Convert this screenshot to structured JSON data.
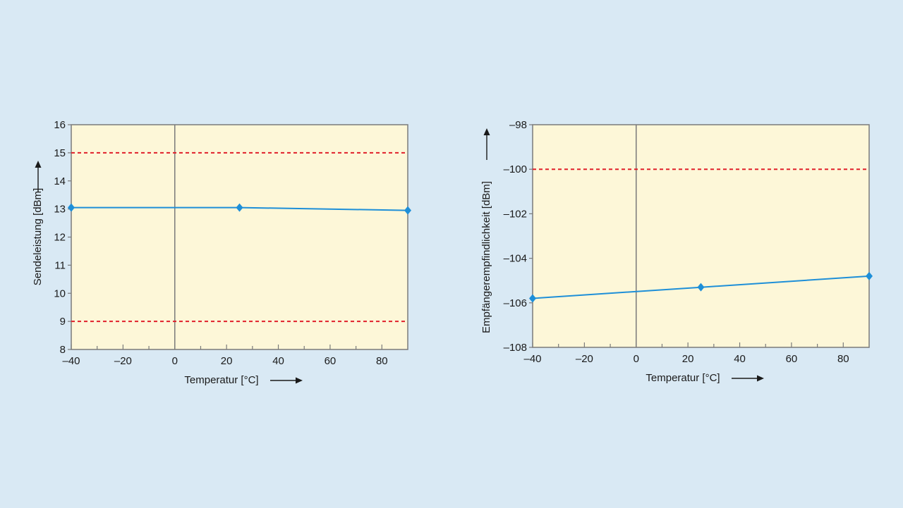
{
  "colors": {
    "background": "#d9e9f4",
    "plot_fill": "#fdf7d8",
    "series": "#1e8fd8",
    "limit": "#e0202a",
    "frame": "#7a7a7a",
    "arrow": "#1a1a1a"
  },
  "chart_data": [
    {
      "type": "line",
      "xlabel": "Temperatur [°C]",
      "ylabel": "Sendeleistung [dBm]",
      "xlim": [
        -40,
        90
      ],
      "ylim": [
        8,
        16
      ],
      "x_ticks": [
        -40,
        -20,
        0,
        20,
        40,
        60,
        80
      ],
      "x_tick_labels": [
        "–40",
        "–20",
        "0",
        "20",
        "40",
        "60",
        "80"
      ],
      "y_ticks": [
        8,
        9,
        10,
        11,
        12,
        13,
        14,
        15,
        16
      ],
      "y_tick_labels": [
        "8",
        "9",
        "10",
        "11",
        "12",
        "13",
        "14",
        "15",
        "16"
      ],
      "reference_lines": {
        "vertical_x": 0,
        "dashed_y": [
          15,
          9
        ]
      },
      "grid": false,
      "series": [
        {
          "x": [
            -40,
            25,
            90
          ],
          "y": [
            13.05,
            13.05,
            12.95
          ],
          "marker": "diamond"
        }
      ]
    },
    {
      "type": "line",
      "xlabel": "Temperatur [°C]",
      "ylabel": "Empfängerempfindlichkeit [dBm]",
      "xlim": [
        -40,
        90
      ],
      "ylim": [
        -108,
        -98
      ],
      "x_ticks": [
        -40,
        -20,
        0,
        20,
        40,
        60,
        80
      ],
      "x_tick_labels": [
        "–40",
        "–20",
        "0",
        "20",
        "40",
        "60",
        "80"
      ],
      "y_ticks": [
        -108,
        -106,
        -104,
        -102,
        -100,
        -98
      ],
      "y_tick_labels": [
        "–108",
        "–106",
        "–104",
        "–102",
        "–100",
        "–98"
      ],
      "reference_lines": {
        "vertical_x": 0,
        "dashed_y": [
          -100
        ]
      },
      "grid": false,
      "series": [
        {
          "x": [
            -40,
            25,
            90
          ],
          "y": [
            -105.8,
            -105.3,
            -104.8
          ],
          "marker": "diamond"
        }
      ]
    }
  ]
}
